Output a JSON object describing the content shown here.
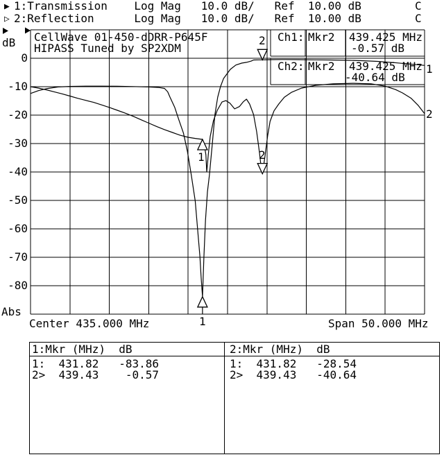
{
  "header": {
    "line1": {
      "icon": "filled-right-triangle",
      "text": "1:Transmission    Log Mag   10.0 dB/   Ref  10.00 dB        C"
    },
    "line2": {
      "icon": "hollow-right-triangle",
      "text": "2:Reflection      Log Mag   10.0 dB/   Ref  10.00 dB        C"
    }
  },
  "y_axis": {
    "unit": "dB",
    "ticks": [
      "0",
      "-10",
      "-20",
      "-30",
      "-40",
      "-50",
      "-60",
      "-70",
      "-80"
    ],
    "bottom_label": "Abs"
  },
  "x_axis": {
    "center_label": "Center 435.000 MHz",
    "span_label": "Span 50.000 MHz"
  },
  "title": {
    "line1": "CellWave 01-450-dDRR-P645F",
    "line2": "HIPASS Tuned by SP2XDM"
  },
  "readouts": {
    "ch1": {
      "channel": "Ch1:",
      "marker": "Mkr2",
      "freq": "439.425 MHz",
      "value": "-0.57 dB"
    },
    "ch2": {
      "channel": "Ch2:",
      "marker": "Mkr2",
      "freq": "439.425 MHz",
      "value": "-40.64 dB"
    }
  },
  "trace_labels": {
    "trace1": "1",
    "trace2": "2"
  },
  "marker_table": {
    "left": {
      "header": "1:Mkr (MHz)  dB",
      "rows": [
        "1:  431.82   -83.86",
        "2>  439.43    -0.57"
      ]
    },
    "right": {
      "header": "2:Mkr (MHz)  dB",
      "rows": [
        "1:  431.82   -28.54",
        "2>  439.43   -40.64"
      ]
    }
  },
  "colors": {
    "foreground": "#000000",
    "background": "#ffffff"
  },
  "chart_data": {
    "type": "line",
    "title": "CellWave 01-450-dDRR-P645F",
    "subtitle": "HIPASS Tuned by SP2XDM",
    "x_start_mhz": 410,
    "x_stop_mhz": 460,
    "x_center_mhz": 435,
    "x_span_mhz": 50,
    "y_top_db": 10,
    "y_bottom_db": -90,
    "y_per_div_db": 10,
    "y_ref_db": 10,
    "grid": {
      "x_divisions": 10,
      "y_divisions": 10
    },
    "series": [
      {
        "name": "Transmission",
        "points": [
          [
            410,
            -12.4
          ],
          [
            411,
            -11.4
          ],
          [
            412,
            -10.7
          ],
          [
            413.5,
            -10.1
          ],
          [
            415,
            -9.9
          ],
          [
            417,
            -9.8
          ],
          [
            419,
            -9.8
          ],
          [
            421,
            -9.85
          ],
          [
            423,
            -9.95
          ],
          [
            425,
            -10.1
          ],
          [
            426.3,
            -10.3
          ],
          [
            427,
            -10.6
          ],
          [
            427.4,
            -11.8
          ],
          [
            427.7,
            -13.7
          ],
          [
            428.3,
            -17.3
          ],
          [
            428.8,
            -21.5
          ],
          [
            429.4,
            -26.3
          ],
          [
            429.9,
            -32.7
          ],
          [
            430.4,
            -41
          ],
          [
            430.9,
            -50.2
          ],
          [
            431.2,
            -60
          ],
          [
            431.5,
            -69.8
          ],
          [
            431.65,
            -77
          ],
          [
            431.82,
            -83.86
          ],
          [
            432,
            -70
          ],
          [
            432.2,
            -57
          ],
          [
            432.45,
            -47
          ],
          [
            432.7,
            -41
          ],
          [
            433.05,
            -30.7
          ],
          [
            433.4,
            -19.8
          ],
          [
            433.75,
            -13.7
          ],
          [
            434.1,
            -10
          ],
          [
            434.5,
            -7.1
          ],
          [
            435.35,
            -3.9
          ],
          [
            436.05,
            -2.4
          ],
          [
            436.8,
            -1.7
          ],
          [
            437.4,
            -1.45
          ],
          [
            438,
            -1.0
          ],
          [
            438.3,
            -0.6
          ],
          [
            439,
            -0.55
          ],
          [
            439.425,
            -0.57
          ],
          [
            440.5,
            -0.5
          ],
          [
            442,
            -0.45
          ],
          [
            444,
            -0.5
          ],
          [
            446,
            -0.55
          ],
          [
            448,
            -0.6
          ],
          [
            450,
            -0.7
          ],
          [
            452,
            -0.85
          ],
          [
            454,
            -1.1
          ],
          [
            456,
            -1.5
          ],
          [
            458,
            -2.0
          ],
          [
            460,
            -2.5
          ]
        ]
      },
      {
        "name": "Reflection",
        "points": [
          [
            410,
            -10.0
          ],
          [
            411,
            -10.5
          ],
          [
            412,
            -11.1
          ],
          [
            413,
            -11.8
          ],
          [
            414,
            -12.5
          ],
          [
            415,
            -13.3
          ],
          [
            416,
            -14.1
          ],
          [
            417,
            -14.8
          ],
          [
            418,
            -15.5
          ],
          [
            419,
            -16.4
          ],
          [
            420,
            -17.3
          ],
          [
            421,
            -18.3
          ],
          [
            422,
            -19.3
          ],
          [
            423,
            -20.4
          ],
          [
            424,
            -21.6
          ],
          [
            425,
            -22.8
          ],
          [
            426,
            -24.0
          ],
          [
            427,
            -25.1
          ],
          [
            428,
            -26.1
          ],
          [
            429,
            -27.1
          ],
          [
            430,
            -27.8
          ],
          [
            430.9,
            -28.2
          ],
          [
            431.82,
            -28.54
          ],
          [
            432.05,
            -30.5
          ],
          [
            432.25,
            -34
          ],
          [
            432.36,
            -40
          ],
          [
            432.55,
            -34
          ],
          [
            432.8,
            -27.5
          ],
          [
            433.2,
            -22
          ],
          [
            433.7,
            -18.3
          ],
          [
            434.3,
            -15.4
          ],
          [
            434.8,
            -14.9
          ],
          [
            435.3,
            -15.8
          ],
          [
            435.9,
            -17.8
          ],
          [
            436.5,
            -17.0
          ],
          [
            437.0,
            -15.3
          ],
          [
            437.4,
            -14.4
          ],
          [
            437.8,
            -16.1
          ],
          [
            438.3,
            -19.8
          ],
          [
            438.7,
            -25.9
          ],
          [
            439.05,
            -33.2
          ],
          [
            439.3,
            -39.3
          ],
          [
            439.425,
            -40.64
          ],
          [
            439.75,
            -34.4
          ],
          [
            440.1,
            -27.1
          ],
          [
            440.4,
            -22.2
          ],
          [
            440.9,
            -18.5
          ],
          [
            441.5,
            -16.1
          ],
          [
            442.2,
            -13.7
          ],
          [
            443.1,
            -12.0
          ],
          [
            444.4,
            -10.5
          ],
          [
            446.2,
            -9.5
          ],
          [
            448.4,
            -9.0
          ],
          [
            451,
            -8.8
          ],
          [
            453.2,
            -9.0
          ],
          [
            455,
            -9.8
          ],
          [
            456.3,
            -11.0
          ],
          [
            457.2,
            -12.2
          ],
          [
            458.3,
            -14.1
          ],
          [
            459.2,
            -16.6
          ],
          [
            460,
            -19.5
          ]
        ]
      }
    ],
    "markers": [
      {
        "channel": 1,
        "marker": 1,
        "freq_mhz": 431.82,
        "db": -83.86,
        "dir": "up",
        "label": "1",
        "stem": true
      },
      {
        "channel": 1,
        "marker": 2,
        "freq_mhz": 439.425,
        "db": -0.57,
        "dir": "down",
        "label": "2",
        "stem": false
      },
      {
        "channel": 2,
        "marker": 1,
        "freq_mhz": 431.82,
        "db": -28.54,
        "dir": "up",
        "label": "1",
        "stem": false
      },
      {
        "channel": 2,
        "marker": 2,
        "freq_mhz": 439.425,
        "db": -40.64,
        "dir": "down",
        "label": "2",
        "stem": false
      }
    ],
    "legend": [
      "1:Transmission",
      "2:Reflection"
    ]
  }
}
